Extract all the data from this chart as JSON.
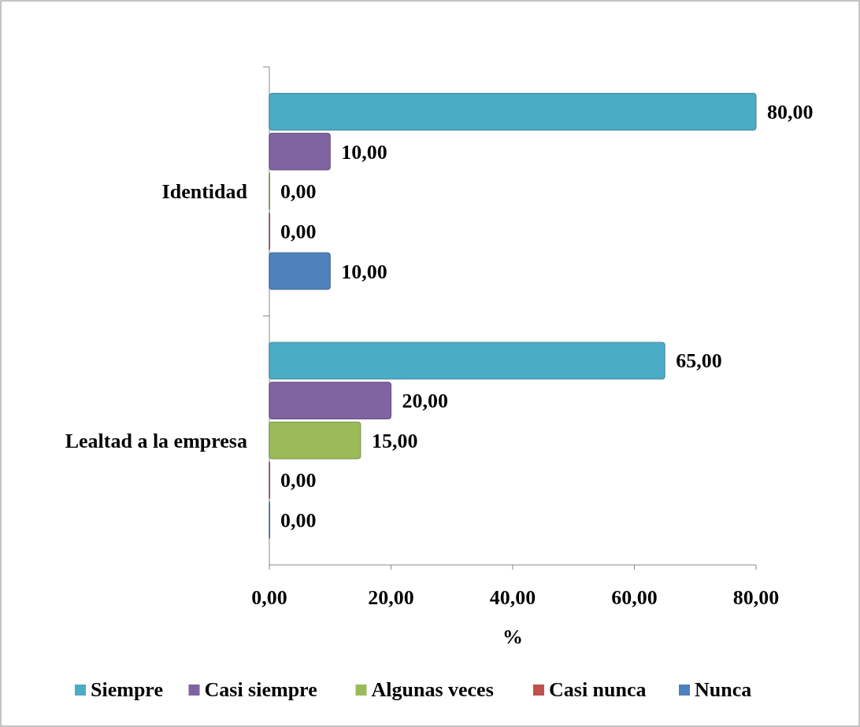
{
  "chart_data": {
    "type": "bar",
    "orientation": "horizontal",
    "xlabel": "%",
    "categories": [
      "Identidad",
      "Lealtad a la empresa"
    ],
    "series": [
      {
        "name": "Siempre",
        "color": "#4bacc6",
        "values": [
          80,
          65
        ],
        "value_labels": [
          "80,00",
          "65,00"
        ]
      },
      {
        "name": "Casi siempre",
        "color": "#8064a2",
        "values": [
          10,
          20
        ],
        "value_labels": [
          "10,00",
          "20,00"
        ]
      },
      {
        "name": "Algunas veces",
        "color": "#9bbb59",
        "values": [
          0,
          15
        ],
        "value_labels": [
          "0,00",
          "15,00"
        ]
      },
      {
        "name": "Casi nunca",
        "color": "#c0504d",
        "values": [
          0,
          0
        ],
        "value_labels": [
          "0,00",
          "0,00"
        ]
      },
      {
        "name": "Nunca",
        "color": "#4f81bd",
        "values": [
          10,
          0
        ],
        "value_labels": [
          "10,00",
          "0,00"
        ]
      }
    ],
    "xlim": [
      0,
      80
    ],
    "xticks": [
      {
        "value": 0,
        "label": "0,00"
      },
      {
        "value": 20,
        "label": "20,00"
      },
      {
        "value": 40,
        "label": "40,00"
      },
      {
        "value": 60,
        "label": "60,00"
      },
      {
        "value": 80,
        "label": "80,00"
      }
    ],
    "grid": false,
    "legend": "bottom"
  }
}
